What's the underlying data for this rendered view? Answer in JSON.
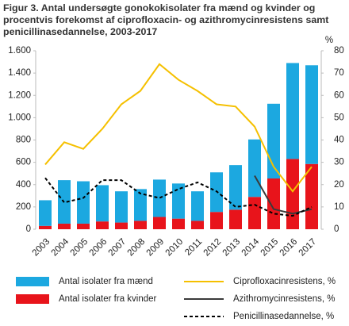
{
  "chart_data": {
    "type": "bar",
    "title": "Figur 3. Antal undersøgte gonokokisolater fra mænd og kvinder og procentvis forekomst af ciprofloxacin- og azithromycinresistens samt penicillinasedannelse, 2003-2017",
    "categories": [
      "2003",
      "2004",
      "2005",
      "2006",
      "2007",
      "2008",
      "2009",
      "2010",
      "2011",
      "2012",
      "2013",
      "2014",
      "2015",
      "2016",
      "2017"
    ],
    "series": [
      {
        "name": "Antal isolater fra kvinder",
        "color": "#e8141b",
        "type": "bar",
        "values": [
          30,
          50,
          50,
          70,
          60,
          75,
          110,
          95,
          75,
          155,
          175,
          290,
          455,
          630,
          585
        ]
      },
      {
        "name": "Antal isolater fra mænd",
        "color": "#1ca8e0",
        "type": "bar",
        "values": [
          230,
          390,
          380,
          325,
          280,
          285,
          335,
          315,
          265,
          355,
          400,
          515,
          670,
          860,
          885
        ]
      },
      {
        "name": "Ciprofloxacinresistens, %",
        "color": "#f5c000",
        "type": "line",
        "axis": "y2",
        "dashed": false,
        "values": [
          29,
          39,
          36,
          45,
          56,
          62,
          74,
          67,
          62,
          56,
          55,
          46,
          28,
          17,
          28
        ]
      },
      {
        "name": "Azithromycinresistens, %",
        "color": "#3a3a3a",
        "type": "line",
        "axis": "y2",
        "dashed": false,
        "values": [
          null,
          null,
          null,
          null,
          null,
          null,
          null,
          null,
          null,
          null,
          null,
          24,
          9,
          7,
          9
        ]
      },
      {
        "name": "Penicillinasedannelse, %",
        "color": "#000000",
        "type": "line",
        "axis": "y2",
        "dashed": true,
        "values": [
          23,
          12,
          14,
          22,
          22,
          16,
          14,
          18,
          21,
          17,
          10,
          11,
          7,
          6,
          10
        ]
      }
    ],
    "ylim": [
      0,
      1600
    ],
    "yticks": [
      0,
      200,
      400,
      600,
      800,
      {
        "value": 1000,
        "label": "1.000"
      },
      {
        "value": 1200,
        "label": "1.200"
      },
      {
        "value": 1400,
        "label": "1.400"
      },
      {
        "value": 1600,
        "label": "1.600"
      }
    ],
    "y2label": "%",
    "y2lim": [
      0,
      80
    ],
    "y2ticks": [
      0,
      10,
      20,
      30,
      40,
      50,
      60,
      70,
      80
    ],
    "grid": false
  }
}
